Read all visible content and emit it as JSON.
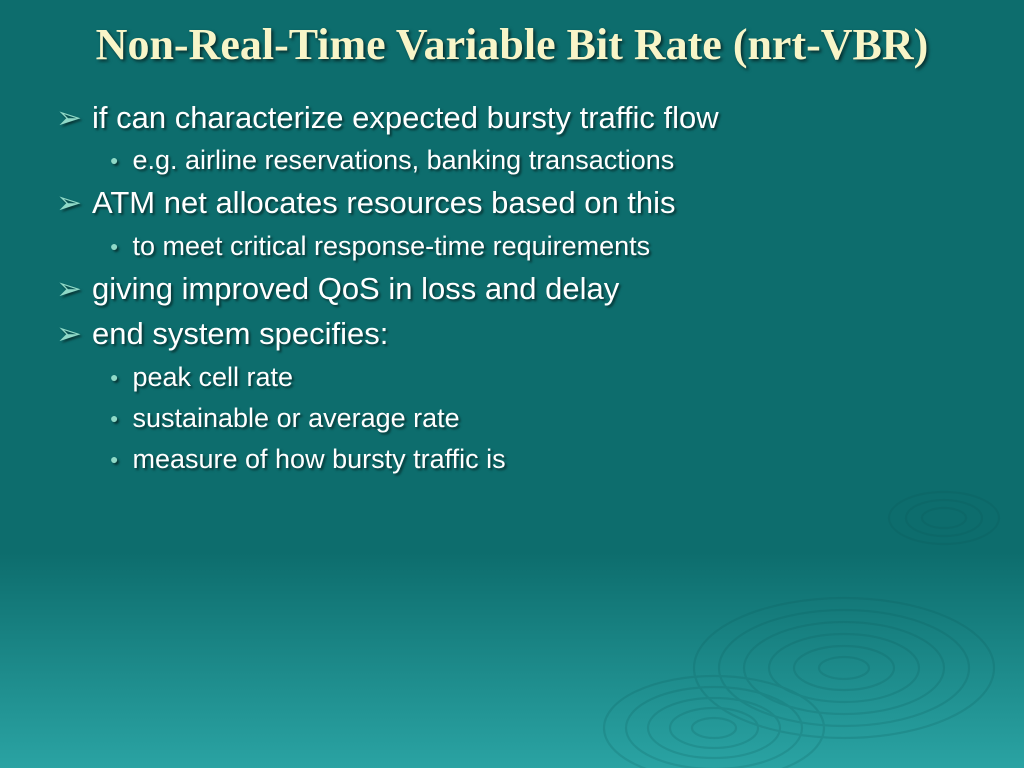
{
  "slide": {
    "title": "Non-Real-Time Variable Bit Rate (nrt-VBR)",
    "title_color": "#f8f5c8",
    "title_fontsize": 44,
    "background": {
      "top_color": "#0d6d6d",
      "bottom_color": "#2aa3a3",
      "gradient_stop": 0.72
    },
    "ripple_stroke": "#0a5757",
    "bullets": [
      {
        "level": 1,
        "text": "if can characterize expected bursty traffic flow"
      },
      {
        "level": 2,
        "text": "e.g. airline reservations, banking transactions"
      },
      {
        "level": 1,
        "text": "ATM net allocates resources based on this"
      },
      {
        "level": 2,
        "text": "to meet critical response-time requirements"
      },
      {
        "level": 1,
        "text": "giving improved QoS in loss and delay"
      },
      {
        "level": 1,
        "text": "end system specifies:"
      },
      {
        "level": 2,
        "text": "peak cell rate"
      },
      {
        "level": 2,
        "text": "sustainable or average rate"
      },
      {
        "level": 2,
        "text": "measure of how bursty traffic is"
      }
    ],
    "bullet_l1": {
      "marker": "➢",
      "marker_color": "#8fd9c7",
      "text_color": "#ffffff",
      "fontsize": 31
    },
    "bullet_l2": {
      "marker": "●",
      "marker_color": "#8fd9c7",
      "marker_fontsize": 14,
      "text_color": "#ffffff",
      "fontsize": 27
    }
  }
}
